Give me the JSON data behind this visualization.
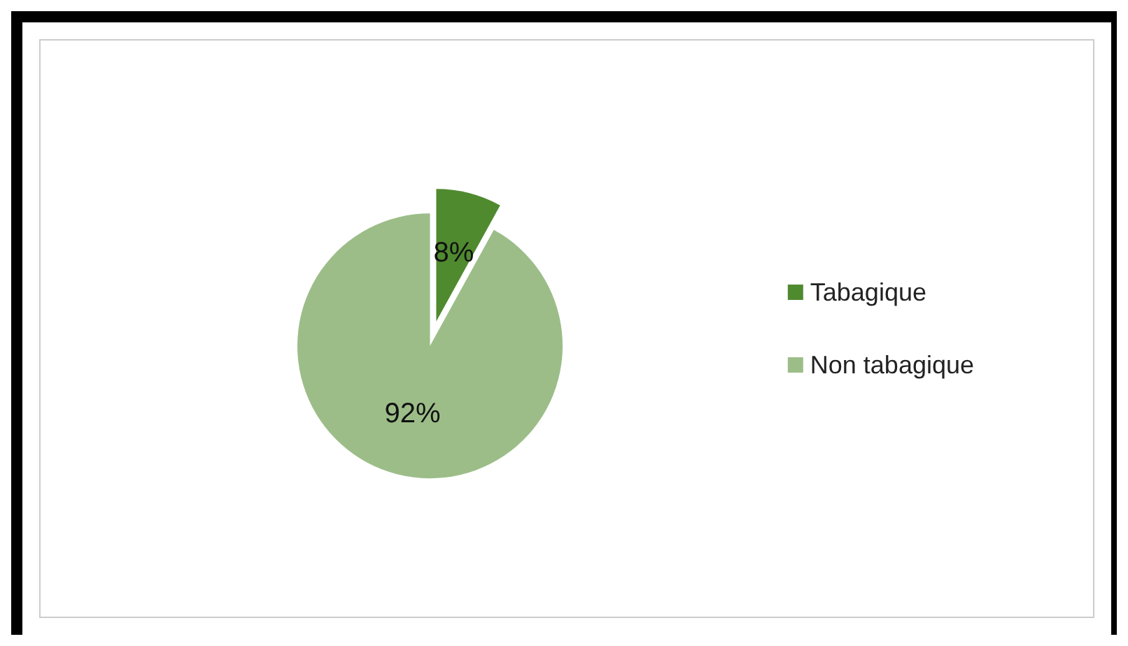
{
  "chart_data": {
    "type": "pie",
    "categories": [
      "Tabagique",
      "Non tabagique"
    ],
    "values": [
      8,
      92
    ],
    "value_labels": [
      "8%",
      "92%"
    ],
    "colors": [
      "#4f8a2f",
      "#9cbd88"
    ],
    "legend": "right"
  }
}
